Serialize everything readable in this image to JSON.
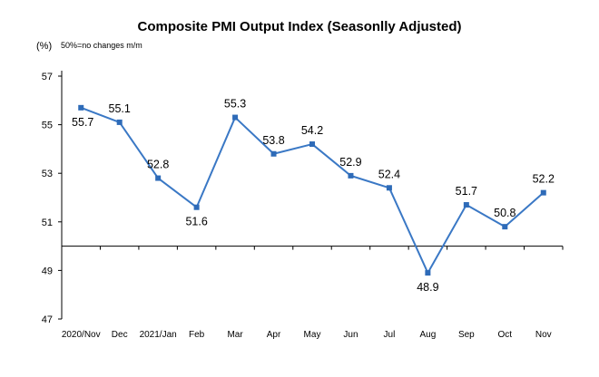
{
  "chart_data": {
    "type": "line",
    "title": "Composite PMI Output Index (Seasonlly Adjusted)",
    "unit_label": "(%)",
    "note": "50%=no changes  m/m",
    "categories": [
      "2020/Nov",
      "Dec",
      "2021/Jan",
      "Feb",
      "Mar",
      "Apr",
      "May",
      "Jun",
      "Jul",
      "Aug",
      "Sep",
      "Oct",
      "Nov"
    ],
    "series": [
      {
        "values": [
          55.7,
          55.1,
          52.8,
          51.6,
          55.3,
          53.8,
          54.2,
          52.9,
          52.4,
          48.9,
          51.7,
          50.8,
          52.2
        ]
      }
    ],
    "value_labels": [
      "55.7",
      "55.1",
      "52.8",
      "51.6",
      "55.3",
      "53.8",
      "54.2",
      "52.9",
      "52.4",
      "48.9",
      "51.7",
      "50.8",
      "52.2"
    ],
    "yticks": [
      "47",
      "49",
      "51",
      "53",
      "55",
      "57"
    ],
    "ylim": [
      47,
      57
    ],
    "reference_line": 50,
    "grid": false,
    "legend": "none",
    "colors": {
      "line": "#3a78c5",
      "marker": "#2e6bb8",
      "axis": "#000000"
    }
  }
}
